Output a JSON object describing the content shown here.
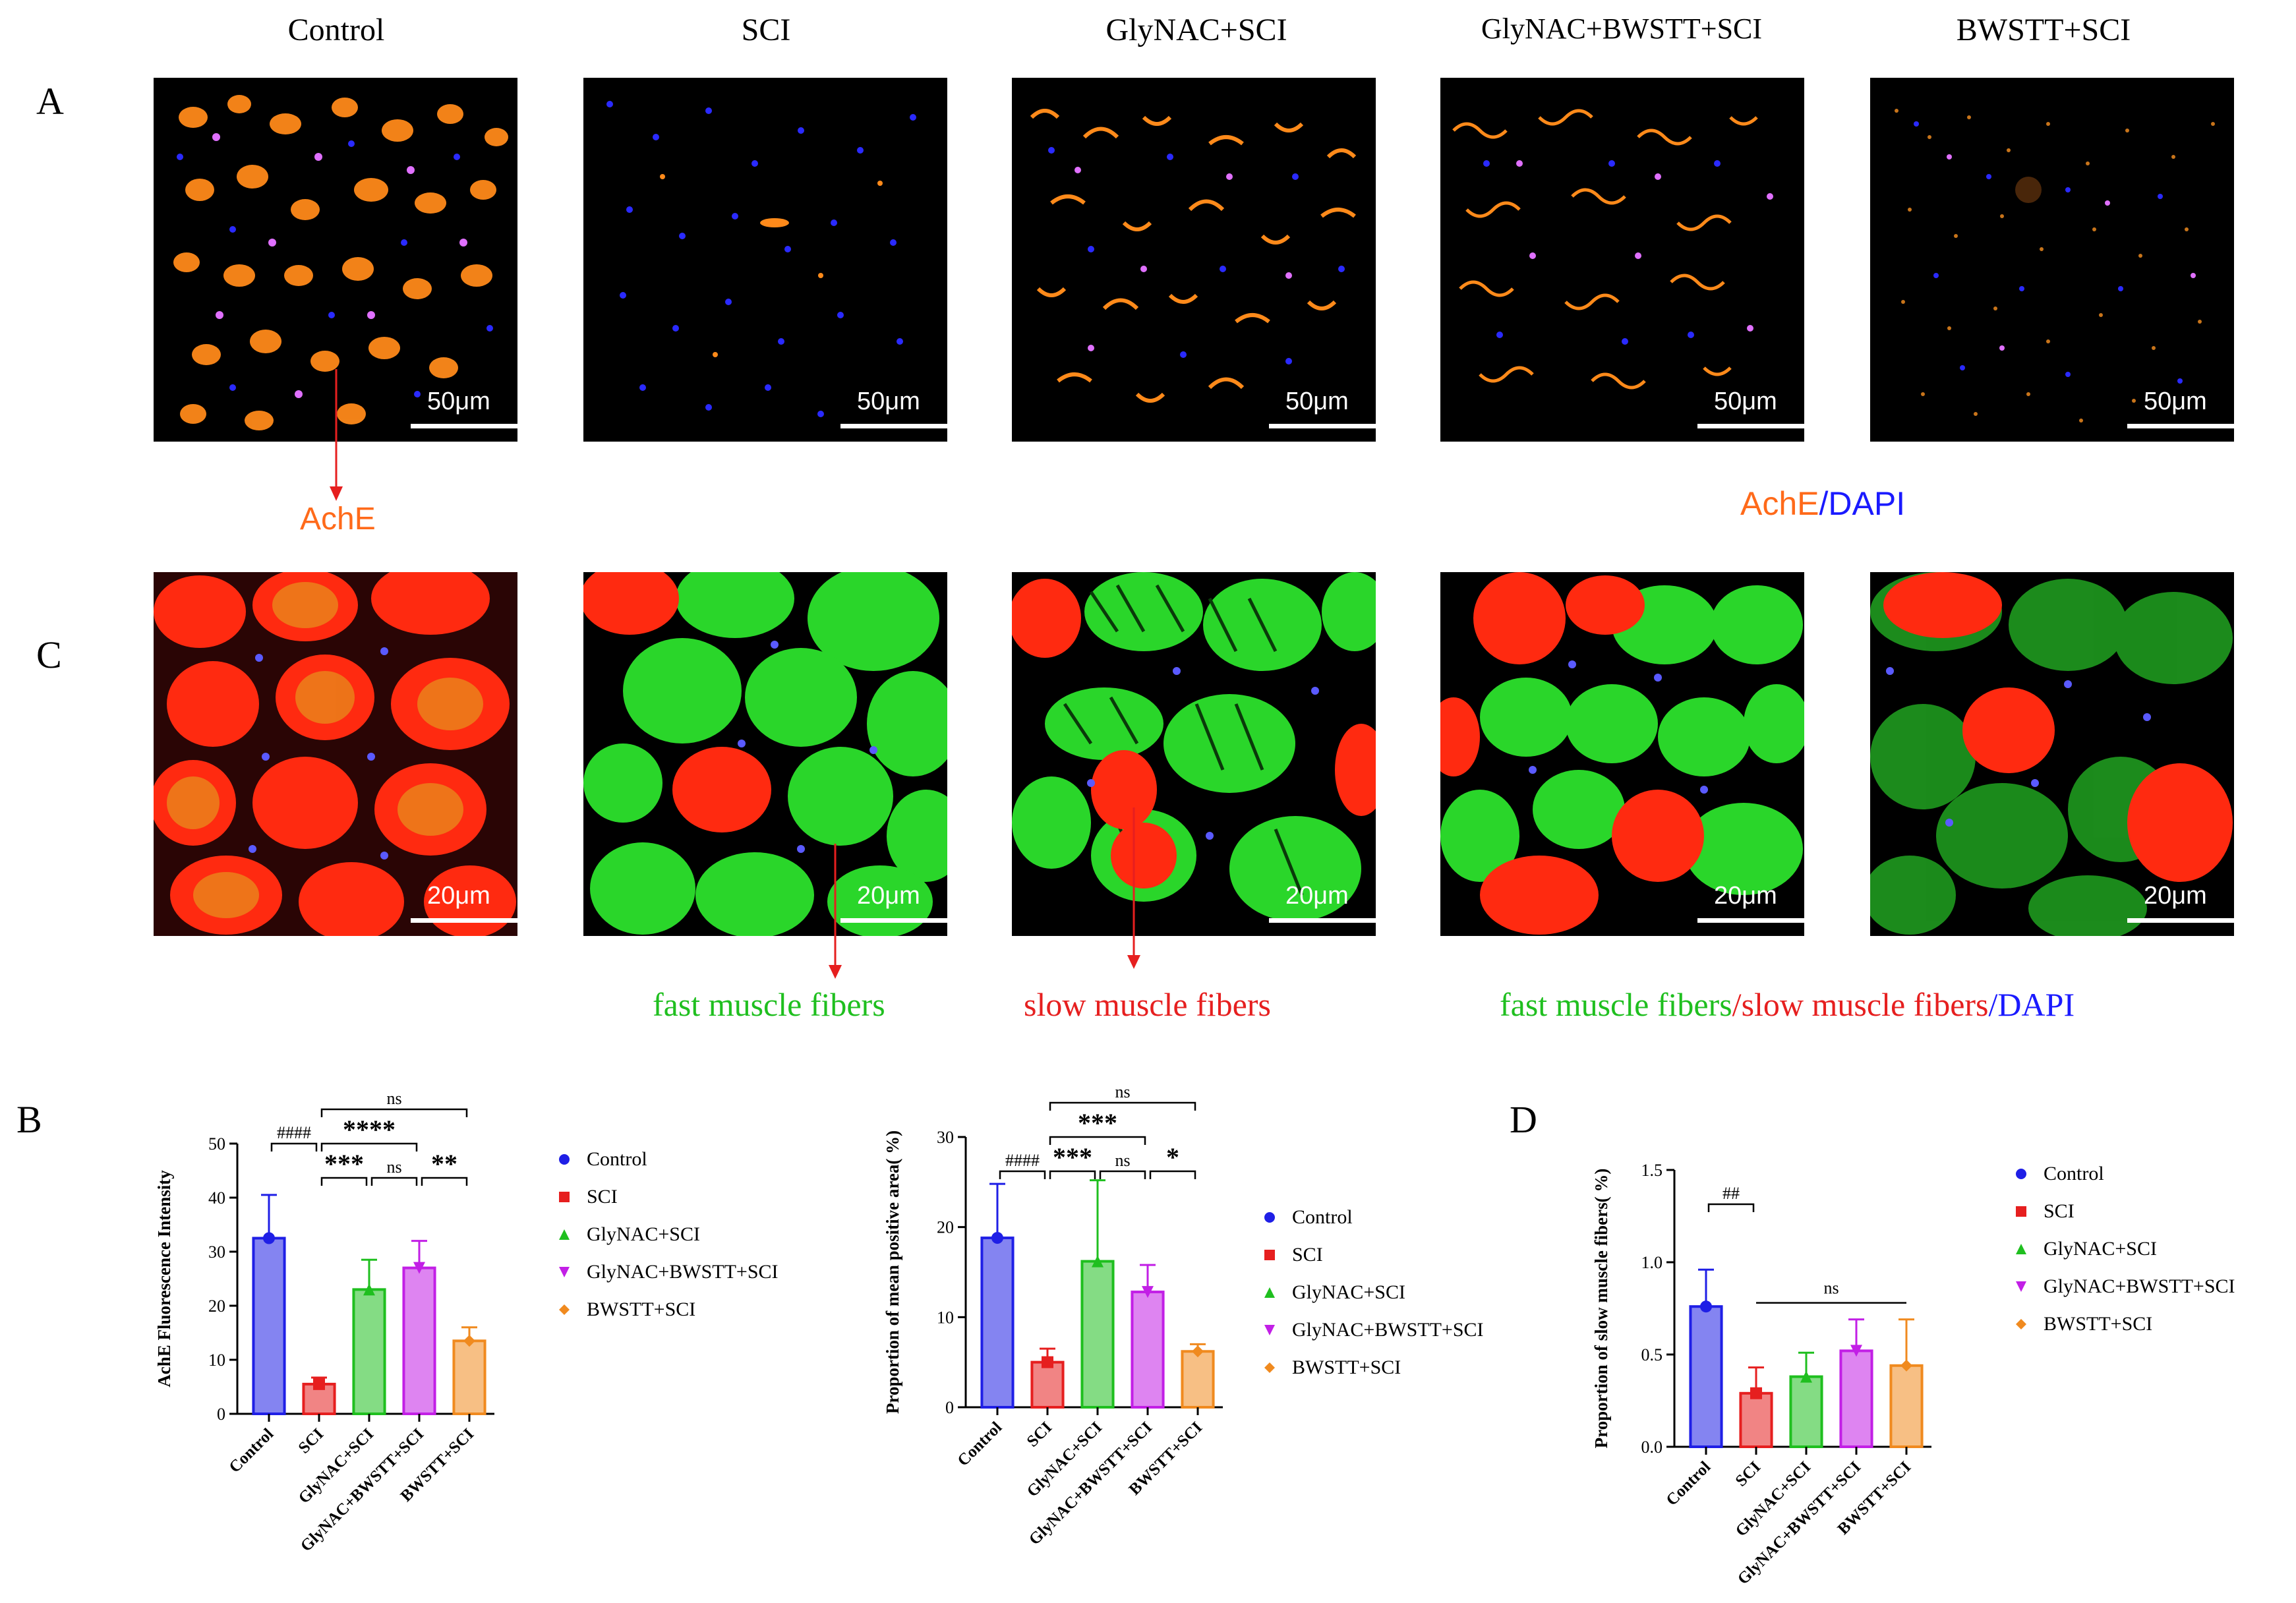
{
  "columns": [
    "Control",
    "SCI",
    "GlyNAC+SCI",
    "GlyNAC+BWSTT+SCI",
    "BWSTT+SCI"
  ],
  "panel_letters": {
    "a": "A",
    "b": "B",
    "c": "C",
    "d": "D"
  },
  "scalebar_a": "50μm",
  "scalebar_c": "20μm",
  "annotations": {
    "ache": "AchE",
    "ache_dapi": {
      "ache": "AchE",
      "sep": "/",
      "dapi": "DAPI"
    },
    "fast": "fast muscle fibers",
    "slow": "slow muscle fibers",
    "legend_c": {
      "fast": "fast muscle fibers",
      "sep1": "/",
      "slow": "slow muscle fibers",
      "sep2": "/",
      "dapi": "DAPI"
    }
  },
  "colors": {
    "control": "#1f1fe6",
    "sci": "#e61f1f",
    "glynac": "#1fbf1f",
    "glynac_bwstt": "#c21fe6",
    "bwstt": "#f08a1f",
    "ache": "#ff6a1a",
    "dapi": "#1a1aff",
    "fast": "#1fbf1f",
    "slow": "#e61f1f"
  },
  "legend": [
    {
      "name": "Control",
      "marker": "circle"
    },
    {
      "name": "SCI",
      "marker": "square"
    },
    {
      "name": "GlyNAC+SCI",
      "marker": "triangle"
    },
    {
      "name": "GlyNAC+BWSTT+SCI",
      "marker": "triangle-down"
    },
    {
      "name": "BWSTT+SCI",
      "marker": "diamond"
    }
  ],
  "chart_data": [
    {
      "id": "B1",
      "type": "bar",
      "categories": [
        "Control",
        "SCI",
        "GlyNAC+SCI",
        "GlyNAC+BWSTT+SCI",
        "BWSTT+SCI"
      ],
      "values": [
        32.5,
        5.5,
        23,
        27,
        13.5
      ],
      "errors": [
        8,
        1.2,
        5.5,
        5,
        2.5
      ],
      "ylabel": "AchE Fluorescence Intensity",
      "ylim": [
        0,
        50
      ],
      "yticks": [
        0,
        10,
        20,
        30,
        40,
        50
      ],
      "brackets": [
        {
          "from": 0,
          "to": 1,
          "level": 1,
          "label": "####"
        },
        {
          "from": 1,
          "to": 2,
          "level": 0,
          "label": "***"
        },
        {
          "from": 2,
          "to": 3,
          "level": 0,
          "label": "ns"
        },
        {
          "from": 3,
          "to": 4,
          "level": 0,
          "label": "**"
        },
        {
          "from": 1,
          "to": 3,
          "level": 1,
          "label": "****"
        },
        {
          "from": 1,
          "to": 4,
          "level": 2,
          "label": "ns"
        }
      ]
    },
    {
      "id": "B2",
      "type": "bar",
      "categories": [
        "Control",
        "SCI",
        "GlyNAC+SCI",
        "GlyNAC+BWSTT+SCI",
        "BWSTT+SCI"
      ],
      "values": [
        18.8,
        5,
        16.2,
        12.8,
        6.2
      ],
      "errors": [
        6,
        1.5,
        9,
        3,
        0.8
      ],
      "ylabel": "Proportion of mean positive area( %)",
      "ylim": [
        0,
        30
      ],
      "yticks": [
        0,
        10,
        20,
        30
      ],
      "brackets": [
        {
          "from": 0,
          "to": 1,
          "level": 0,
          "label": "####"
        },
        {
          "from": 1,
          "to": 2,
          "level": 0,
          "label": "***"
        },
        {
          "from": 2,
          "to": 3,
          "level": 0,
          "label": "ns"
        },
        {
          "from": 3,
          "to": 4,
          "level": 0,
          "label": "*"
        },
        {
          "from": 1,
          "to": 3,
          "level": 1,
          "label": "***"
        },
        {
          "from": 1,
          "to": 4,
          "level": 2,
          "label": "ns"
        }
      ]
    },
    {
      "id": "D",
      "type": "bar",
      "categories": [
        "Control",
        "SCI",
        "GlyNAC+SCI",
        "GlyNAC+BWSTT+SCI",
        "BWSTT+SCI"
      ],
      "values": [
        0.76,
        0.29,
        0.38,
        0.52,
        0.44
      ],
      "errors": [
        0.2,
        0.14,
        0.13,
        0.17,
        0.25
      ],
      "ylabel": "Proportion of slow muscle fibers( %)",
      "ylim": [
        0,
        1.5
      ],
      "yticks": [
        "0.0",
        "0.5",
        "1.0",
        "1.5"
      ],
      "brackets": [
        {
          "from": 0,
          "to": 1,
          "level": 0,
          "label": "##"
        },
        {
          "from": 1,
          "to": 4,
          "level": 0,
          "label": "ns",
          "style": "line"
        }
      ]
    }
  ]
}
